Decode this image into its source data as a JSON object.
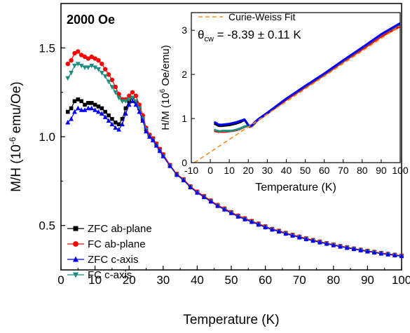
{
  "chart_data": [
    {
      "id": "main",
      "type": "scatter",
      "annotation": "2000 Oe",
      "xlabel": "Temperature (K)",
      "ylabel_parts": [
        "M/H (10",
        "-6",
        " emu/Oe)"
      ],
      "xlim": [
        0,
        100
      ],
      "ylim": [
        0.25,
        1.75
      ],
      "xticks": [
        0,
        10,
        20,
        30,
        40,
        50,
        60,
        70,
        80,
        90,
        100
      ],
      "yticks": [
        0.5,
        1.0,
        1.5
      ],
      "ytick_labels": [
        "0.5",
        "1.0",
        "1.5"
      ],
      "grid": false,
      "legend_position": "bottom-left",
      "series": [
        {
          "name": "ZFC ab-plane",
          "color": "#000000",
          "marker": "square",
          "x": [
            2,
            3,
            4,
            5,
            6,
            7,
            8,
            9,
            10,
            11,
            12,
            13,
            14,
            15,
            16,
            17,
            18,
            19,
            20,
            21,
            22,
            23,
            24,
            25,
            26,
            27,
            28,
            29,
            30,
            32,
            34,
            36,
            38,
            40,
            42,
            44,
            46,
            48,
            50,
            52,
            54,
            56,
            58,
            60,
            62,
            64,
            66,
            68,
            70,
            72,
            74,
            76,
            78,
            80,
            82,
            84,
            86,
            88,
            90,
            92,
            94,
            96,
            98,
            100
          ],
          "y": [
            1.14,
            1.16,
            1.2,
            1.21,
            1.2,
            1.18,
            1.19,
            1.19,
            1.18,
            1.17,
            1.16,
            1.14,
            1.12,
            1.1,
            1.08,
            1.07,
            1.1,
            1.16,
            1.2,
            1.22,
            1.2,
            1.16,
            1.1,
            1.04,
            1.01,
            0.99,
            0.96,
            0.93,
            0.9,
            0.84,
            0.79,
            0.76,
            0.72,
            0.69,
            0.665,
            0.64,
            0.615,
            0.595,
            0.575,
            0.555,
            0.54,
            0.525,
            0.51,
            0.495,
            0.48,
            0.47,
            0.458,
            0.447,
            0.437,
            0.427,
            0.418,
            0.409,
            0.4,
            0.392,
            0.384,
            0.377,
            0.37,
            0.363,
            0.357,
            0.351,
            0.345,
            0.34,
            0.335,
            0.33
          ]
        },
        {
          "name": "FC ab-plane",
          "color": "#ff0000",
          "marker": "circle",
          "x": [
            2,
            3,
            4,
            5,
            6,
            7,
            8,
            9,
            10,
            11,
            12,
            13,
            14,
            15,
            16,
            17,
            18,
            19,
            20,
            21,
            22,
            23,
            24,
            25,
            26,
            27,
            28,
            29,
            30,
            32,
            34,
            36,
            38,
            40,
            42,
            44,
            46,
            48,
            50,
            52,
            54,
            56,
            58,
            60,
            62,
            64,
            66,
            68,
            70,
            72,
            74,
            76,
            78,
            80,
            82,
            84,
            86,
            88,
            90,
            92,
            94,
            96,
            98,
            100
          ],
          "y": [
            1.41,
            1.43,
            1.47,
            1.48,
            1.46,
            1.45,
            1.44,
            1.45,
            1.44,
            1.43,
            1.41,
            1.38,
            1.35,
            1.32,
            1.28,
            1.24,
            1.21,
            1.21,
            1.23,
            1.25,
            1.23,
            1.18,
            1.12,
            1.05,
            1.01,
            0.99,
            0.96,
            0.93,
            0.9,
            0.84,
            0.79,
            0.76,
            0.72,
            0.69,
            0.665,
            0.64,
            0.615,
            0.595,
            0.575,
            0.555,
            0.54,
            0.525,
            0.51,
            0.495,
            0.48,
            0.47,
            0.458,
            0.447,
            0.437,
            0.427,
            0.418,
            0.409,
            0.4,
            0.392,
            0.384,
            0.377,
            0.37,
            0.363,
            0.357,
            0.351,
            0.345,
            0.34,
            0.335,
            0.33
          ]
        },
        {
          "name": "ZFC c-axis",
          "color": "#0000ff",
          "marker": "triangle-up",
          "x": [
            2,
            3,
            4,
            5,
            6,
            7,
            8,
            9,
            10,
            11,
            12,
            13,
            14,
            15,
            16,
            17,
            18,
            19,
            20,
            21,
            22,
            23,
            24,
            25,
            26,
            27,
            28,
            29,
            30,
            32,
            34,
            36,
            38,
            40,
            42,
            44,
            46,
            48,
            50,
            52,
            54,
            56,
            58,
            60,
            62,
            64,
            66,
            68,
            70,
            72,
            74,
            76,
            78,
            80,
            82,
            84,
            86,
            88,
            90,
            92,
            94,
            96,
            98,
            100
          ],
          "y": [
            1.08,
            1.1,
            1.14,
            1.16,
            1.15,
            1.15,
            1.16,
            1.16,
            1.15,
            1.14,
            1.13,
            1.11,
            1.09,
            1.07,
            1.05,
            1.04,
            1.07,
            1.13,
            1.18,
            1.2,
            1.18,
            1.14,
            1.09,
            1.03,
            1.0,
            0.98,
            0.95,
            0.92,
            0.89,
            0.835,
            0.785,
            0.755,
            0.715,
            0.685,
            0.66,
            0.635,
            0.61,
            0.59,
            0.57,
            0.55,
            0.535,
            0.52,
            0.505,
            0.49,
            0.477,
            0.466,
            0.454,
            0.443,
            0.433,
            0.423,
            0.414,
            0.405,
            0.397,
            0.389,
            0.381,
            0.374,
            0.367,
            0.36,
            0.354,
            0.348,
            0.342,
            0.337,
            0.332,
            0.327
          ]
        },
        {
          "name": "FC c-axis",
          "color": "#1a8f80",
          "marker": "triangle-down",
          "x": [
            2,
            3,
            4,
            5,
            6,
            7,
            8,
            9,
            10,
            11,
            12,
            13,
            14,
            15,
            16,
            17,
            18,
            19,
            20,
            21,
            22,
            23,
            24,
            25,
            26,
            27,
            28,
            29,
            30,
            32,
            34,
            36,
            38,
            40,
            42,
            44,
            46,
            48,
            50,
            52,
            54,
            56,
            58,
            60,
            62,
            64,
            66,
            68,
            70,
            72,
            74,
            76,
            78,
            80,
            82,
            84,
            86,
            88,
            90,
            92,
            94,
            96,
            98,
            100
          ],
          "y": [
            1.33,
            1.36,
            1.4,
            1.41,
            1.4,
            1.39,
            1.39,
            1.4,
            1.39,
            1.38,
            1.36,
            1.34,
            1.31,
            1.28,
            1.25,
            1.22,
            1.2,
            1.2,
            1.21,
            1.22,
            1.2,
            1.16,
            1.1,
            1.04,
            1.0,
            0.98,
            0.95,
            0.92,
            0.89,
            0.835,
            0.785,
            0.755,
            0.715,
            0.685,
            0.66,
            0.635,
            0.61,
            0.59,
            0.57,
            0.55,
            0.535,
            0.52,
            0.505,
            0.49,
            0.477,
            0.466,
            0.454,
            0.443,
            0.433,
            0.423,
            0.414,
            0.405,
            0.397,
            0.389,
            0.381,
            0.374,
            0.367,
            0.36,
            0.354,
            0.348,
            0.342,
            0.337,
            0.332,
            0.327
          ]
        }
      ]
    },
    {
      "id": "inset",
      "type": "line",
      "xlabel": "Temperature (K)",
      "ylabel_parts": [
        "H/M (10",
        "6",
        " Oe/emu)"
      ],
      "annotation_parts": [
        "θ",
        "cw",
        " = -8.39 ± 0.11 K"
      ],
      "xlim": [
        -10,
        100
      ],
      "ylim": [
        0,
        3.4
      ],
      "xticks": [
        -10,
        0,
        10,
        20,
        30,
        40,
        50,
        60,
        70,
        80,
        90,
        100
      ],
      "yticks": [
        0,
        1,
        2,
        3
      ],
      "grid": false,
      "legend_position": "top-left",
      "fit": {
        "name": "Curie-Weiss Fit",
        "color": "#ff8c1a",
        "style": "dashed",
        "x": [
          -8.39,
          100
        ],
        "y": [
          0,
          3.1
        ]
      },
      "series": [
        {
          "color": "#000000",
          "x": [
            2,
            3,
            4,
            5,
            6,
            8,
            10,
            12,
            14,
            16,
            18,
            19,
            20,
            21,
            22,
            23,
            24,
            25,
            26,
            28,
            30,
            40,
            50,
            60,
            70,
            80,
            90,
            100
          ],
          "y": [
            0.88,
            0.87,
            0.84,
            0.83,
            0.83,
            0.84,
            0.85,
            0.87,
            0.89,
            0.92,
            0.97,
            0.91,
            0.84,
            0.82,
            0.84,
            0.89,
            0.93,
            0.97,
            1.0,
            1.06,
            1.12,
            1.44,
            1.72,
            2.0,
            2.3,
            2.58,
            2.87,
            3.1
          ]
        },
        {
          "color": "#ff0000",
          "x": [
            2,
            3,
            4,
            5,
            6,
            8,
            10,
            12,
            14,
            16,
            18,
            19,
            20,
            21,
            22,
            23,
            24,
            25,
            26,
            28,
            30,
            40,
            50,
            60,
            70,
            80,
            90,
            100
          ],
          "y": [
            0.72,
            0.71,
            0.7,
            0.7,
            0.7,
            0.7,
            0.71,
            0.72,
            0.74,
            0.77,
            0.81,
            0.82,
            0.82,
            0.81,
            0.83,
            0.87,
            0.92,
            0.96,
            0.99,
            1.05,
            1.11,
            1.43,
            1.71,
            1.99,
            2.29,
            2.57,
            2.86,
            3.09
          ]
        },
        {
          "color": "#1a8f80",
          "x": [
            2,
            3,
            4,
            5,
            6,
            8,
            10,
            12,
            14,
            16,
            18,
            19,
            20,
            21,
            22,
            23,
            24,
            25,
            26,
            28,
            30,
            40,
            50,
            60,
            70,
            80,
            90,
            100
          ],
          "y": [
            0.75,
            0.73,
            0.72,
            0.71,
            0.72,
            0.72,
            0.72,
            0.73,
            0.75,
            0.78,
            0.82,
            0.83,
            0.83,
            0.82,
            0.84,
            0.88,
            0.93,
            0.97,
            1.0,
            1.06,
            1.12,
            1.45,
            1.73,
            2.01,
            2.31,
            2.6,
            2.9,
            3.14
          ]
        },
        {
          "color": "#0000ff",
          "x": [
            2,
            3,
            4,
            5,
            6,
            8,
            10,
            12,
            14,
            16,
            18,
            19,
            20,
            21,
            22,
            23,
            24,
            25,
            26,
            28,
            30,
            40,
            50,
            60,
            70,
            80,
            90,
            100
          ],
          "y": [
            0.92,
            0.9,
            0.87,
            0.86,
            0.86,
            0.87,
            0.88,
            0.9,
            0.92,
            0.95,
            0.98,
            0.92,
            0.85,
            0.83,
            0.85,
            0.9,
            0.94,
            0.98,
            1.01,
            1.07,
            1.13,
            1.45,
            1.74,
            2.02,
            2.32,
            2.61,
            2.91,
            3.16
          ]
        }
      ]
    }
  ]
}
